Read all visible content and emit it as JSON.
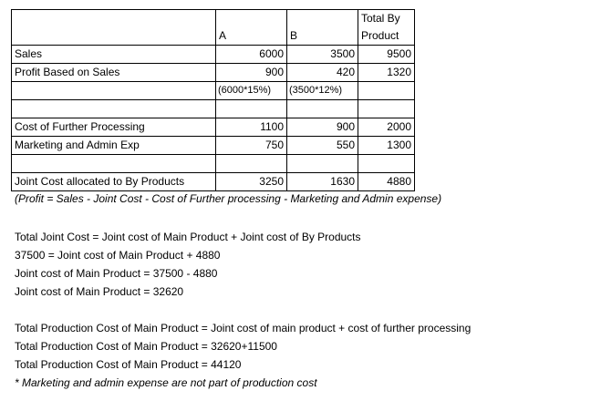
{
  "table": {
    "header": {
      "col_a": "A",
      "col_b": "B",
      "col_total_line1": "Total By",
      "col_total_line2": "Product"
    },
    "rows": {
      "sales": {
        "label": "Sales",
        "a": "6000",
        "b": "3500",
        "total": "9500"
      },
      "profit": {
        "label": "Profit Based on Sales",
        "a": "900",
        "b": "420",
        "total": "1320"
      },
      "profit_note": {
        "a": "(6000*15%)",
        "b": "(3500*12%)"
      },
      "further_processing": {
        "label": "Cost of Further Processing",
        "a": "1100",
        "b": "900",
        "total": "2000"
      },
      "marketing": {
        "label": "Marketing and Admin Exp",
        "a": "750",
        "b": "550",
        "total": "1300"
      },
      "joint_cost": {
        "label": "Joint Cost allocated to By Products",
        "a": "3250",
        "b": "1630",
        "total": "4880"
      }
    }
  },
  "formula_note": "(Profit = Sales - Joint Cost - Cost of Further processing - Marketing  and Admin expense)",
  "joint_cost_lines": [
    "Total Joint Cost = Joint cost of Main Product + Joint cost of By Products",
    "37500 = Joint cost of Main Product + 4880",
    "Joint cost of Main Product = 37500 - 4880",
    "Joint cost of Main Product = 32620"
  ],
  "production_cost_lines": [
    "Total Production Cost of Main Product = Joint cost of main product  + cost of further processing",
    "Total Production Cost of Main Product = 32620+11500",
    "Total Production Cost of Main Product = 44120"
  ],
  "footnote": "* Marketing and admin expense are not part of production cost"
}
